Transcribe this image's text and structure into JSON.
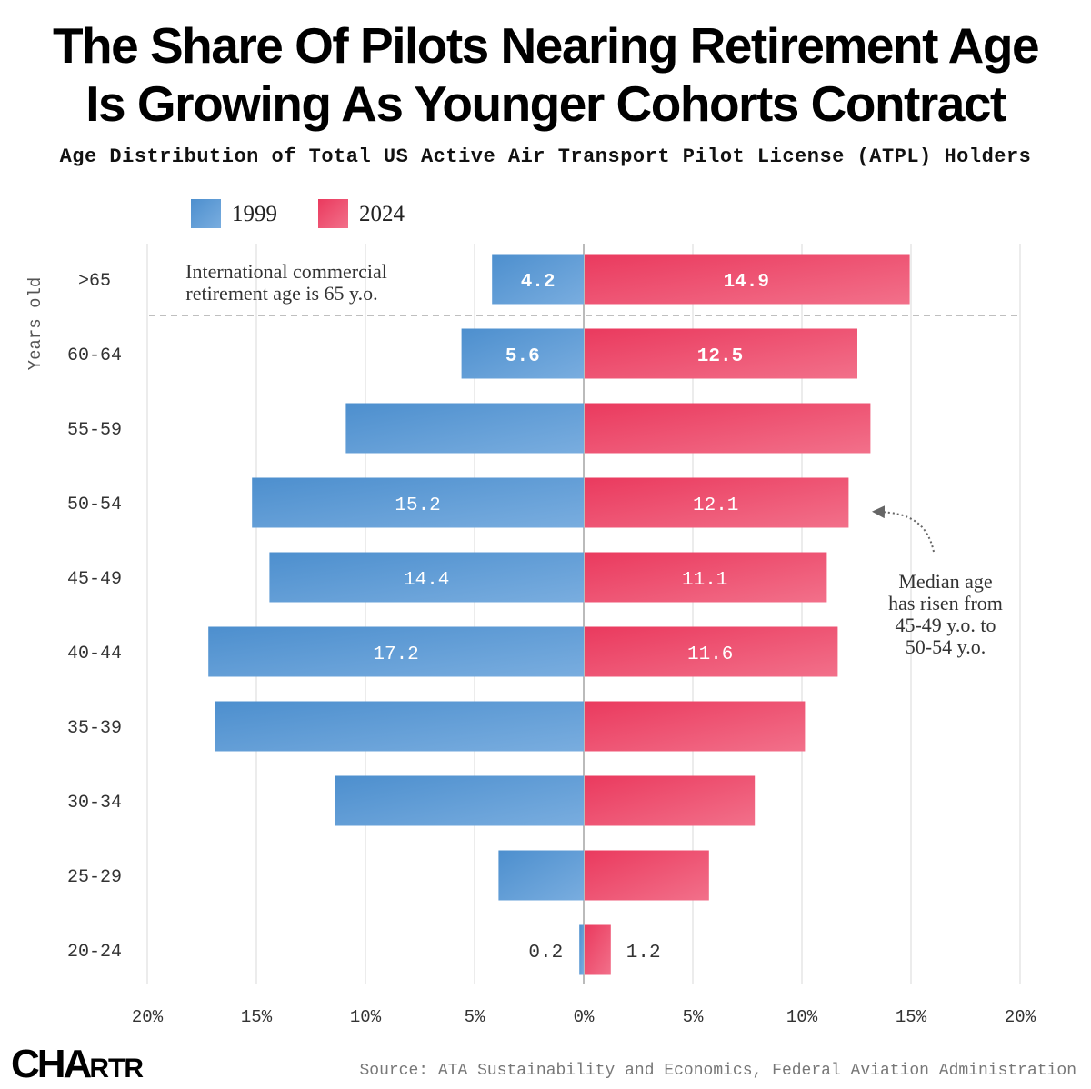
{
  "title_line1": "The Share Of Pilots Nearing Retirement Age",
  "title_line2": "Is Growing As Younger Cohorts Contract",
  "subtitle": "Age Distribution of Total US Active Air Transport Pilot License (ATPL) Holders",
  "source": "Source: ATA Sustainability and Economics, Federal Aviation Administration",
  "logo": {
    "part1": "CHA",
    "part2": "RTR"
  },
  "colors": {
    "series_1999": "#5b9bd5",
    "series_2024": "#ee4d6d",
    "grid": "#e6e6e6",
    "axis": "#bbbbbb",
    "text": "#333333"
  },
  "chart_data": {
    "type": "bar",
    "orientation": "horizontal-diverging",
    "ylabel": "Years old",
    "categories": [
      ">65",
      "60-64",
      "55-59",
      "50-54",
      "45-49",
      "40-44",
      "35-39",
      "30-34",
      "25-29",
      "20-24"
    ],
    "series": [
      {
        "name": "1999",
        "direction": "left",
        "values": [
          4.2,
          5.6,
          10.9,
          15.2,
          14.4,
          17.2,
          16.9,
          11.4,
          3.9,
          0.2
        ]
      },
      {
        "name": "2024",
        "direction": "right",
        "values": [
          14.9,
          12.5,
          13.1,
          12.1,
          11.1,
          11.6,
          10.1,
          7.8,
          5.7,
          1.2
        ]
      }
    ],
    "data_labels": {
      "1999": [
        "4.2",
        "5.6",
        "",
        "15.2",
        "14.4",
        "17.2",
        "",
        "",
        "",
        "0.2"
      ],
      "2024": [
        "14.9",
        "12.5",
        "",
        "12.1",
        "11.1",
        "11.6",
        "",
        "",
        "",
        "1.2"
      ]
    },
    "xlim": [
      -20,
      20
    ],
    "x_ticks": [
      -20,
      -15,
      -10,
      -5,
      0,
      5,
      10,
      15,
      20
    ],
    "x_tick_labels": [
      "20%",
      "15%",
      "10%",
      "5%",
      "0%",
      "5%",
      "10%",
      "15%",
      "20%"
    ],
    "legend": {
      "placement": "top-left",
      "entries": [
        "1999",
        "2024"
      ]
    },
    "annotations": {
      "retirement_line1": "International commercial",
      "retirement_line2": "retirement age is 65 y.o.",
      "median_lines": [
        "Median age",
        "has risen from",
        "45-49 y.o. to",
        "50-54 y.o."
      ]
    }
  }
}
